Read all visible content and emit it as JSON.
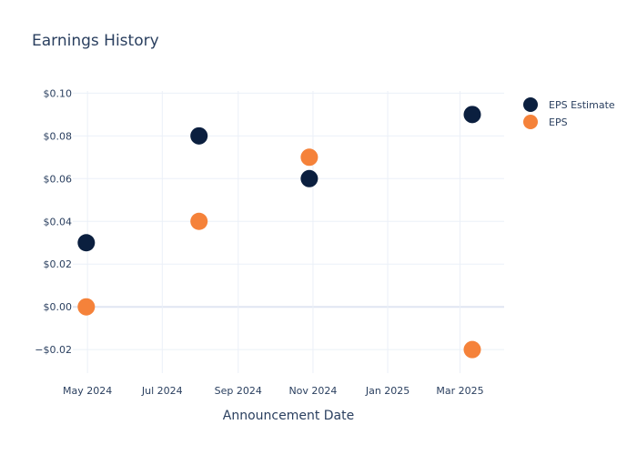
{
  "chart_data": {
    "type": "scatter",
    "title": "Earnings History",
    "xlabel": "Announcement Date",
    "ylabel": "",
    "x_ticks": [
      "2024-05-01",
      "2024-07-01",
      "2024-09-01",
      "2024-11-01",
      "2025-01-01",
      "2025-03-01"
    ],
    "x_tick_labels": [
      "May 2024",
      "Jul 2024",
      "Sep 2024",
      "Nov 2024",
      "Jan 2025",
      "Mar 2025"
    ],
    "xlim": [
      "2024-04-19",
      "2025-04-06"
    ],
    "y_ticks": [
      -0.02,
      0,
      0.02,
      0.04,
      0.06,
      0.08,
      0.1
    ],
    "y_tick_labels": [
      "−$0.02",
      "$0.00",
      "$0.02",
      "$0.04",
      "$0.06",
      "$0.08",
      "$0.10"
    ],
    "ylim": [
      -0.031,
      0.101
    ],
    "grid": true,
    "legend_position": "top-right",
    "series": [
      {
        "name": "EPS Estimate",
        "color": "#0b1f3f",
        "points": [
          {
            "x": "2024-04-30",
            "y": 0.03
          },
          {
            "x": "2024-07-31",
            "y": 0.08
          },
          {
            "x": "2024-10-29",
            "y": 0.06
          },
          {
            "x": "2025-03-11",
            "y": 0.09
          }
        ]
      },
      {
        "name": "EPS",
        "color": "#f5823a",
        "points": [
          {
            "x": "2024-04-30",
            "y": 0.0
          },
          {
            "x": "2024-07-31",
            "y": 0.04
          },
          {
            "x": "2024-10-29",
            "y": 0.07
          },
          {
            "x": "2025-03-11",
            "y": -0.02
          }
        ]
      }
    ]
  }
}
